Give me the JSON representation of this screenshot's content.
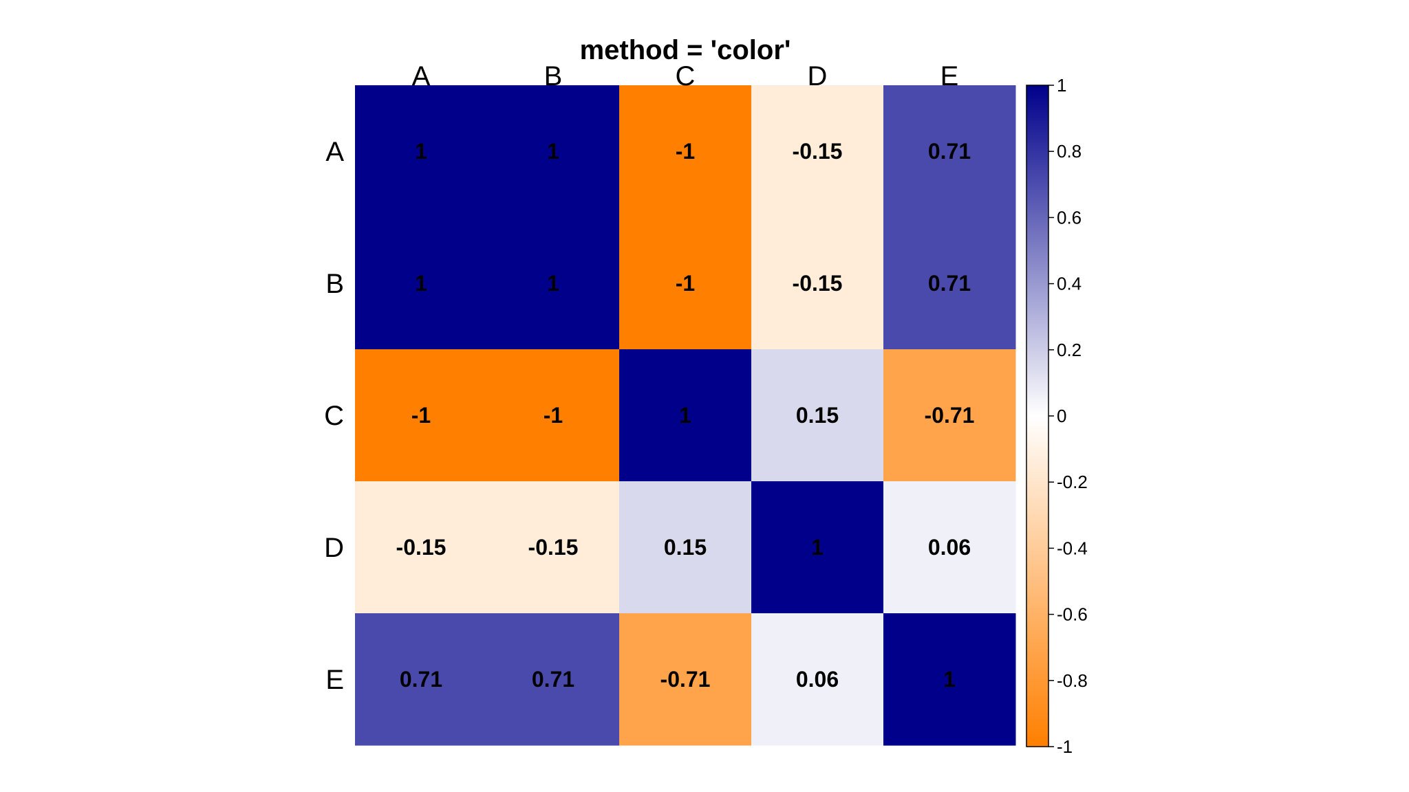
{
  "chart_data": {
    "type": "heatmap",
    "title": "method = 'color'",
    "rows": [
      "A",
      "B",
      "C",
      "D",
      "E"
    ],
    "columns": [
      "A",
      "B",
      "C",
      "D",
      "E"
    ],
    "values": [
      [
        1,
        1,
        -1,
        -0.15,
        0.71
      ],
      [
        1,
        1,
        -1,
        -0.15,
        0.71
      ],
      [
        -1,
        -1,
        1,
        0.15,
        -0.71
      ],
      [
        -0.15,
        -0.15,
        0.15,
        1,
        0.06
      ],
      [
        0.71,
        0.71,
        -0.71,
        0.06,
        1
      ]
    ],
    "value_labels": [
      [
        "1",
        "1",
        "-1",
        "-0.15",
        "0.71"
      ],
      [
        "1",
        "1",
        "-1",
        "-0.15",
        "0.71"
      ],
      [
        "-1",
        "-1",
        "1",
        "0.15",
        "-0.71"
      ],
      [
        "-0.15",
        "-0.15",
        "0.15",
        "1",
        "0.06"
      ],
      [
        "0.71",
        "0.71",
        "-0.71",
        "0.06",
        "1"
      ]
    ],
    "color_scale": {
      "range": [
        -1,
        1
      ],
      "low_color": "#FF7F00",
      "mid_color": "#FFFFFF",
      "high_color": "#00008B",
      "ticks": [
        1,
        0.8,
        0.6,
        0.4,
        0.2,
        0,
        -0.2,
        -0.4,
        -0.6,
        -0.8,
        -1
      ],
      "tick_labels": [
        "1",
        "0.8",
        "0.6",
        "0.4",
        "0.2",
        "0",
        "-0.2",
        "-0.4",
        "-0.6",
        "-0.8",
        "-1"
      ]
    },
    "legend_position": "right"
  }
}
